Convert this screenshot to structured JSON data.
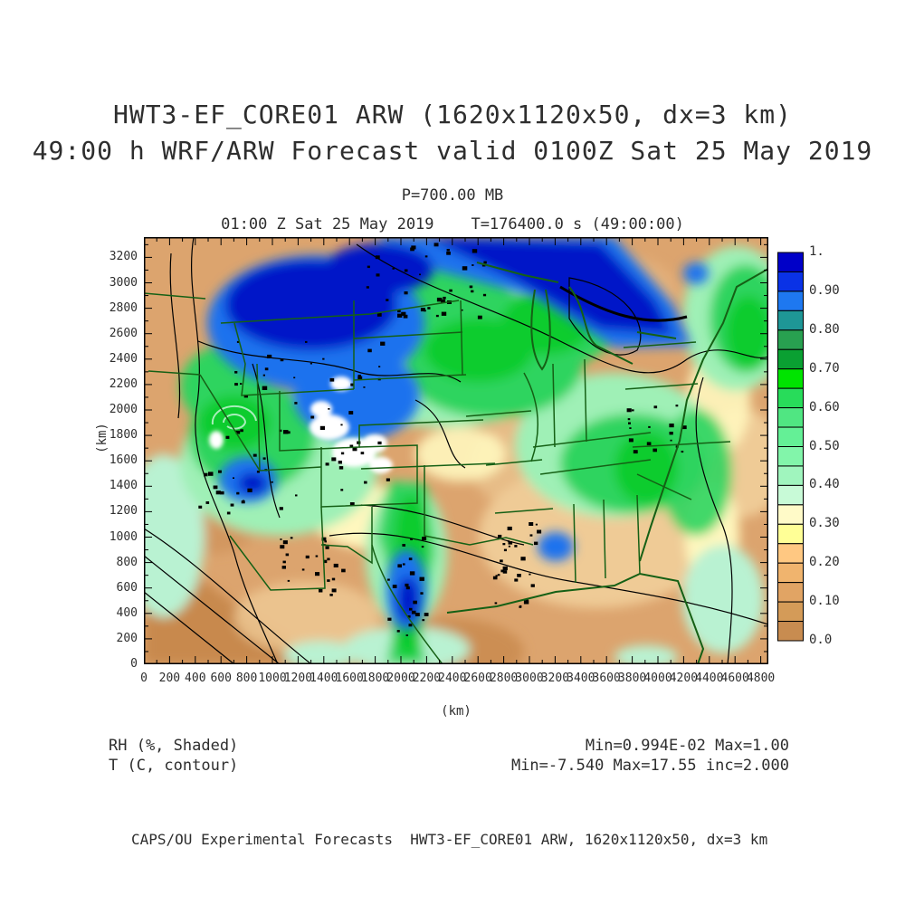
{
  "header": {
    "title_line1": "HWT3-EF_CORE01 ARW (1620x1120x50, dx=3 km)",
    "title_line2": "49:00 h WRF/ARW Forecast valid 0100Z Sat 25 May 2019",
    "pressure_level": "P=700.00 MB",
    "valid_time": "01:00 Z Sat 25 May 2019    T=176400.0 s (49:00:00)"
  },
  "axes": {
    "x_label": "(km)",
    "y_label": "(km)",
    "x_ticks": [
      0,
      200,
      400,
      600,
      800,
      1000,
      1200,
      1400,
      1600,
      1800,
      2000,
      2200,
      2400,
      2600,
      2800,
      3000,
      3200,
      3400,
      3600,
      3800,
      4000,
      4200,
      4400,
      4600,
      4800
    ],
    "y_ticks": [
      0,
      200,
      400,
      600,
      800,
      1000,
      1200,
      1400,
      1600,
      1800,
      2000,
      2200,
      2400,
      2600,
      2800,
      3000,
      3200
    ]
  },
  "colorbar": {
    "labels": [
      "1.",
      "0.90",
      "0.80",
      "0.70",
      "0.60",
      "0.50",
      "0.40",
      "0.30",
      "0.20",
      "0.10",
      "0.0"
    ],
    "colors_top_to_bottom": [
      "#0000C8",
      "#0A32E6",
      "#1E78F0",
      "#1E9696",
      "#28A050",
      "#0AA032",
      "#00E400",
      "#28DC5A",
      "#50E682",
      "#64F096",
      "#82F5AA",
      "#A0F5BE",
      "#C8FAD7",
      "#FFFAC8",
      "#FFFF96",
      "#FFC882",
      "#F0B46E",
      "#E1A464",
      "#D49B58",
      "#C88C50"
    ]
  },
  "annotations": {
    "shaded_field": "RH (%, Shaded)",
    "contour_field": "T (C, contour)",
    "shaded_stats": "Min=0.994E-02 Max=1.00",
    "contour_stats": "Min=-7.540 Max=17.55 inc=2.000"
  },
  "footer": {
    "credit": "CAPS/OU Experimental Forecasts  HWT3-EF_CORE01 ARW, 1620x1120x50, dx=3 km"
  },
  "chart_data": {
    "type": "heatmap",
    "title": "HWT3-EF_CORE01 ARW (1620x1120x50, dx=3 km)",
    "subtitle": "49:00 h WRF/ARW Forecast valid 0100Z Sat 25 May 2019",
    "level": "P=700.00 MB",
    "valid": "01:00 Z Sat 25 May 2019",
    "forecast_seconds": "T=176400.0 s (49:00:00)",
    "shaded_variable": "RH (%, Shaded)",
    "shaded_min": "0.994E-02",
    "shaded_max": "1.00",
    "contour_variable": "T (C, contour)",
    "contour_min": -7.54,
    "contour_max": 17.55,
    "contour_interval": 2.0,
    "xlabel": "(km)",
    "ylabel": "(km)",
    "xlim": [
      0,
      4860
    ],
    "ylim": [
      0,
      3360
    ],
    "x_tick_step": 200,
    "y_tick_step": 200,
    "colorbar_range": [
      0.0,
      1.0
    ],
    "colorbar_step": 0.05,
    "colorbar_labeled_every": 0.1,
    "legend_position": "right",
    "grid": false,
    "overlays": [
      "US state borders (dark green)",
      "temperature contours (black)"
    ]
  }
}
